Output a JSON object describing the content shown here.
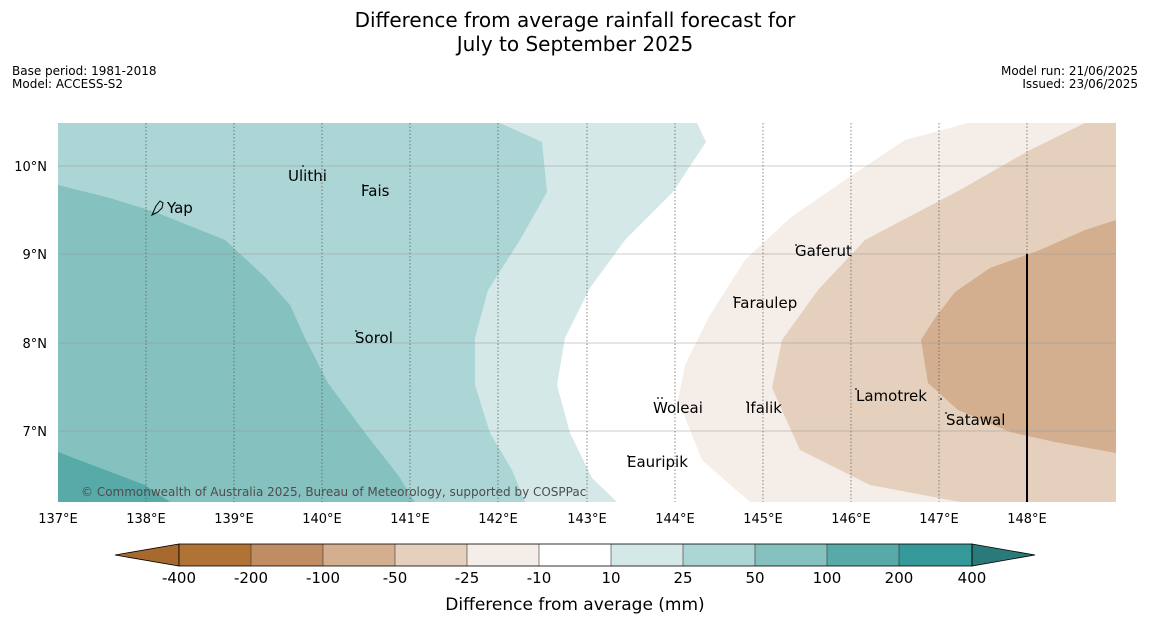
{
  "title_line1": "Difference from average rainfall forecast for",
  "title_line2": "July to September 2025",
  "meta_left": {
    "base_period": "Base period: 1981-2018",
    "model": "Model: ACCESS-S2"
  },
  "meta_right": {
    "model_run": "Model run: 21/06/2025",
    "issued": "Issued: 23/06/2025"
  },
  "map": {
    "lon_range": [
      137,
      149
    ],
    "lat_range": [
      6.2,
      10.5
    ],
    "lon_ticks": [
      "137°E",
      "138°E",
      "139°E",
      "140°E",
      "141°E",
      "142°E",
      "143°E",
      "144°E",
      "145°E",
      "146°E",
      "147°E",
      "148°E"
    ],
    "lat_ticks": [
      "10°N",
      "9°N",
      "8°N",
      "7°N"
    ],
    "places": [
      {
        "name": "Ulithi",
        "lon": 139.75,
        "lat": 9.87
      },
      {
        "name": "Fais",
        "lon": 140.52,
        "lat": 9.75
      },
      {
        "name": "Yap",
        "lon": 138.12,
        "lat": 9.5
      },
      {
        "name": "Gaferut",
        "lon": 145.38,
        "lat": 9.03
      },
      {
        "name": "Faraulep",
        "lon": 144.6,
        "lat": 8.48
      },
      {
        "name": "Sorol",
        "lon": 140.4,
        "lat": 8.08
      },
      {
        "name": "Lamotrek",
        "lon": 146.33,
        "lat": 7.38
      },
      {
        "name": "Satawal",
        "lon": 147.03,
        "lat": 7.12
      },
      {
        "name": "Woleai",
        "lon": 143.9,
        "lat": 7.3
      },
      {
        "name": "Ifalik",
        "lon": 144.45,
        "lat": 7.25
      },
      {
        "name": "Eauripik",
        "lon": 143.05,
        "lat": 6.68
      }
    ],
    "copyright": "© Commonwealth of Australia 2025, Bureau of Meteorology, supported by COSPPac"
  },
  "colorbar": {
    "labels": [
      "-400",
      "-200",
      "-100",
      "-50",
      "-25",
      "-10",
      "10",
      "25",
      "50",
      "100",
      "200",
      "400"
    ],
    "colors": [
      "#a7692e",
      "#b07235",
      "#c08c63",
      "#d3af8f",
      "#e4d0bd",
      "#f5ede8",
      "#ffffff",
      "#d4e8e7",
      "#acd5d5",
      "#85c1bf",
      "#58aaa8",
      "#35999a",
      "#2a7a7a"
    ],
    "title": "Difference from average (mm)"
  }
}
